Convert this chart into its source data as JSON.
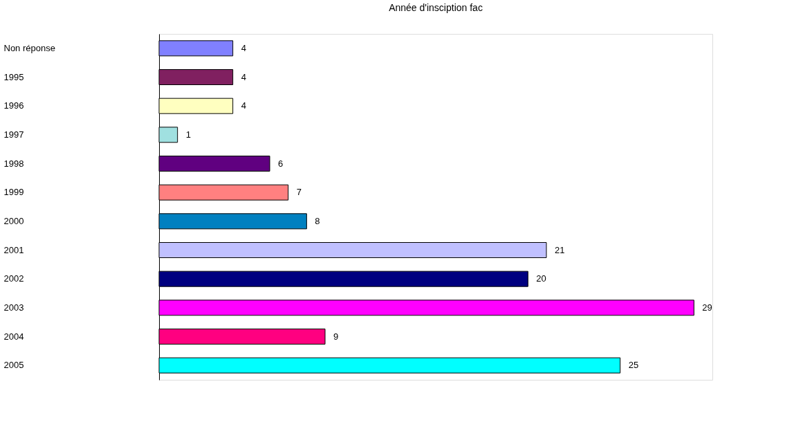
{
  "chart_data": {
    "type": "bar",
    "orientation": "horizontal",
    "title": "Année d'insciption fac",
    "categories": [
      "Non réponse",
      "1995",
      "1996",
      "1997",
      "1998",
      "1999",
      "2000",
      "2001",
      "2002",
      "2003",
      "2004",
      "2005"
    ],
    "values": [
      4,
      4,
      4,
      1,
      6,
      7,
      8,
      21,
      20,
      29,
      9,
      25
    ],
    "colors": [
      "#8080ff",
      "#802060",
      "#ffffc0",
      "#a0e0e0",
      "#600080",
      "#ff8080",
      "#0080c0",
      "#c0c0ff",
      "#000080",
      "#ff00ff",
      "#ff0080",
      "#00ffff"
    ],
    "data_labels": true,
    "grid": false,
    "legend": false
  }
}
